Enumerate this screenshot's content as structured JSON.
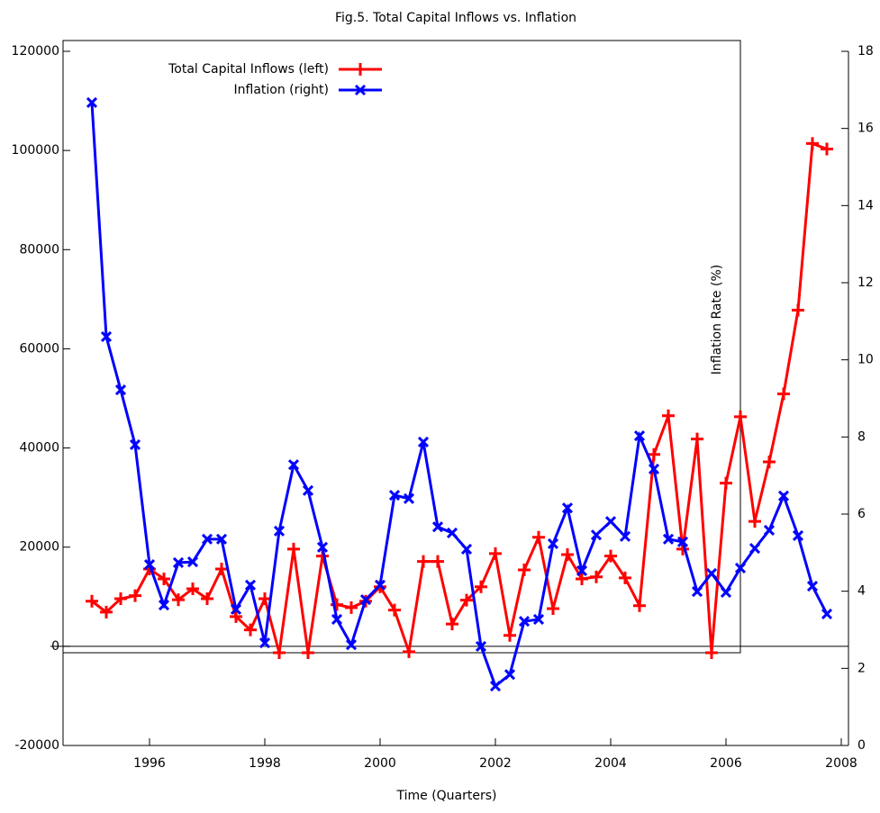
{
  "chart_data": {
    "type": "line",
    "title": "Fig.5. Total Capital Inflows vs. Inflation",
    "x_label": "Time (Quarters)",
    "y2_label": "Inflation Rate (%)",
    "x": [
      1995,
      1995.25,
      1995.5,
      1995.75,
      1996,
      1996.25,
      1996.5,
      1996.75,
      1997,
      1997.25,
      1997.5,
      1997.75,
      1998,
      1998.25,
      1998.5,
      1998.75,
      1999,
      1999.25,
      1999.5,
      1999.75,
      2000,
      2000.25,
      2000.5,
      2000.75,
      2001,
      2001.25,
      2001.5,
      2001.75,
      2002,
      2002.25,
      2002.5,
      2002.75,
      2003,
      2003.25,
      2003.5,
      2003.75,
      2004,
      2004.25,
      2004.5,
      2004.75,
      2005,
      2005.25,
      2005.5,
      2005.75,
      2006,
      2006.25,
      2006.5,
      2006.75,
      2007,
      2007.25,
      2007.5,
      2007.75
    ],
    "series": [
      {
        "name": "Total Capital Inflows (left)",
        "color": "#ff0000",
        "marker": "plus",
        "axis": "y",
        "values": [
          9100,
          6900,
          9600,
          10200,
          15600,
          13600,
          9400,
          11600,
          9600,
          15600,
          6000,
          3300,
          9600,
          -1300,
          19600,
          -1300,
          18200,
          8400,
          7800,
          9100,
          12000,
          7300,
          -1100,
          17100,
          17100,
          4500,
          9300,
          12000,
          18700,
          2200,
          15400,
          22000,
          7600,
          18500,
          13600,
          14000,
          18200,
          13800,
          8200,
          38700,
          46500,
          19600,
          41800,
          -1300,
          32900,
          46300,
          25200,
          37200,
          50900,
          67800,
          101400,
          100300
        ]
      },
      {
        "name": "Inflation  (right)",
        "color": "#0000ff",
        "marker": "cross",
        "axis": "y2",
        "values": [
          16.67,
          10.6,
          9.22,
          7.8,
          4.69,
          3.64,
          4.74,
          4.76,
          5.35,
          5.35,
          3.53,
          4.16,
          2.66,
          5.56,
          7.28,
          6.61,
          5.14,
          3.27,
          2.61,
          3.78,
          4.16,
          6.49,
          6.4,
          7.87,
          5.67,
          5.51,
          5.09,
          2.57,
          1.54,
          1.84,
          3.22,
          3.27,
          5.23,
          6.16,
          4.53,
          5.46,
          5.81,
          5.42,
          8.03,
          7.17,
          5.35,
          5.28,
          3.99,
          4.46,
          3.97,
          4.6,
          5.11,
          5.58,
          6.47,
          5.44,
          4.13,
          3.41
        ]
      }
    ],
    "xlim": [
      1994.5,
      2008.125
    ],
    "xticks": [
      1996,
      1998,
      2000,
      2002,
      2004,
      2006,
      2008
    ],
    "ylim": [
      -20000,
      120000
    ],
    "yticks": [
      -20000,
      0,
      20000,
      40000,
      60000,
      80000,
      100000,
      120000
    ],
    "y2lim": [
      0,
      18
    ],
    "y2ticks": [
      0,
      2,
      4,
      6,
      8,
      10,
      12,
      14,
      16,
      18
    ],
    "legend": "top-left"
  }
}
